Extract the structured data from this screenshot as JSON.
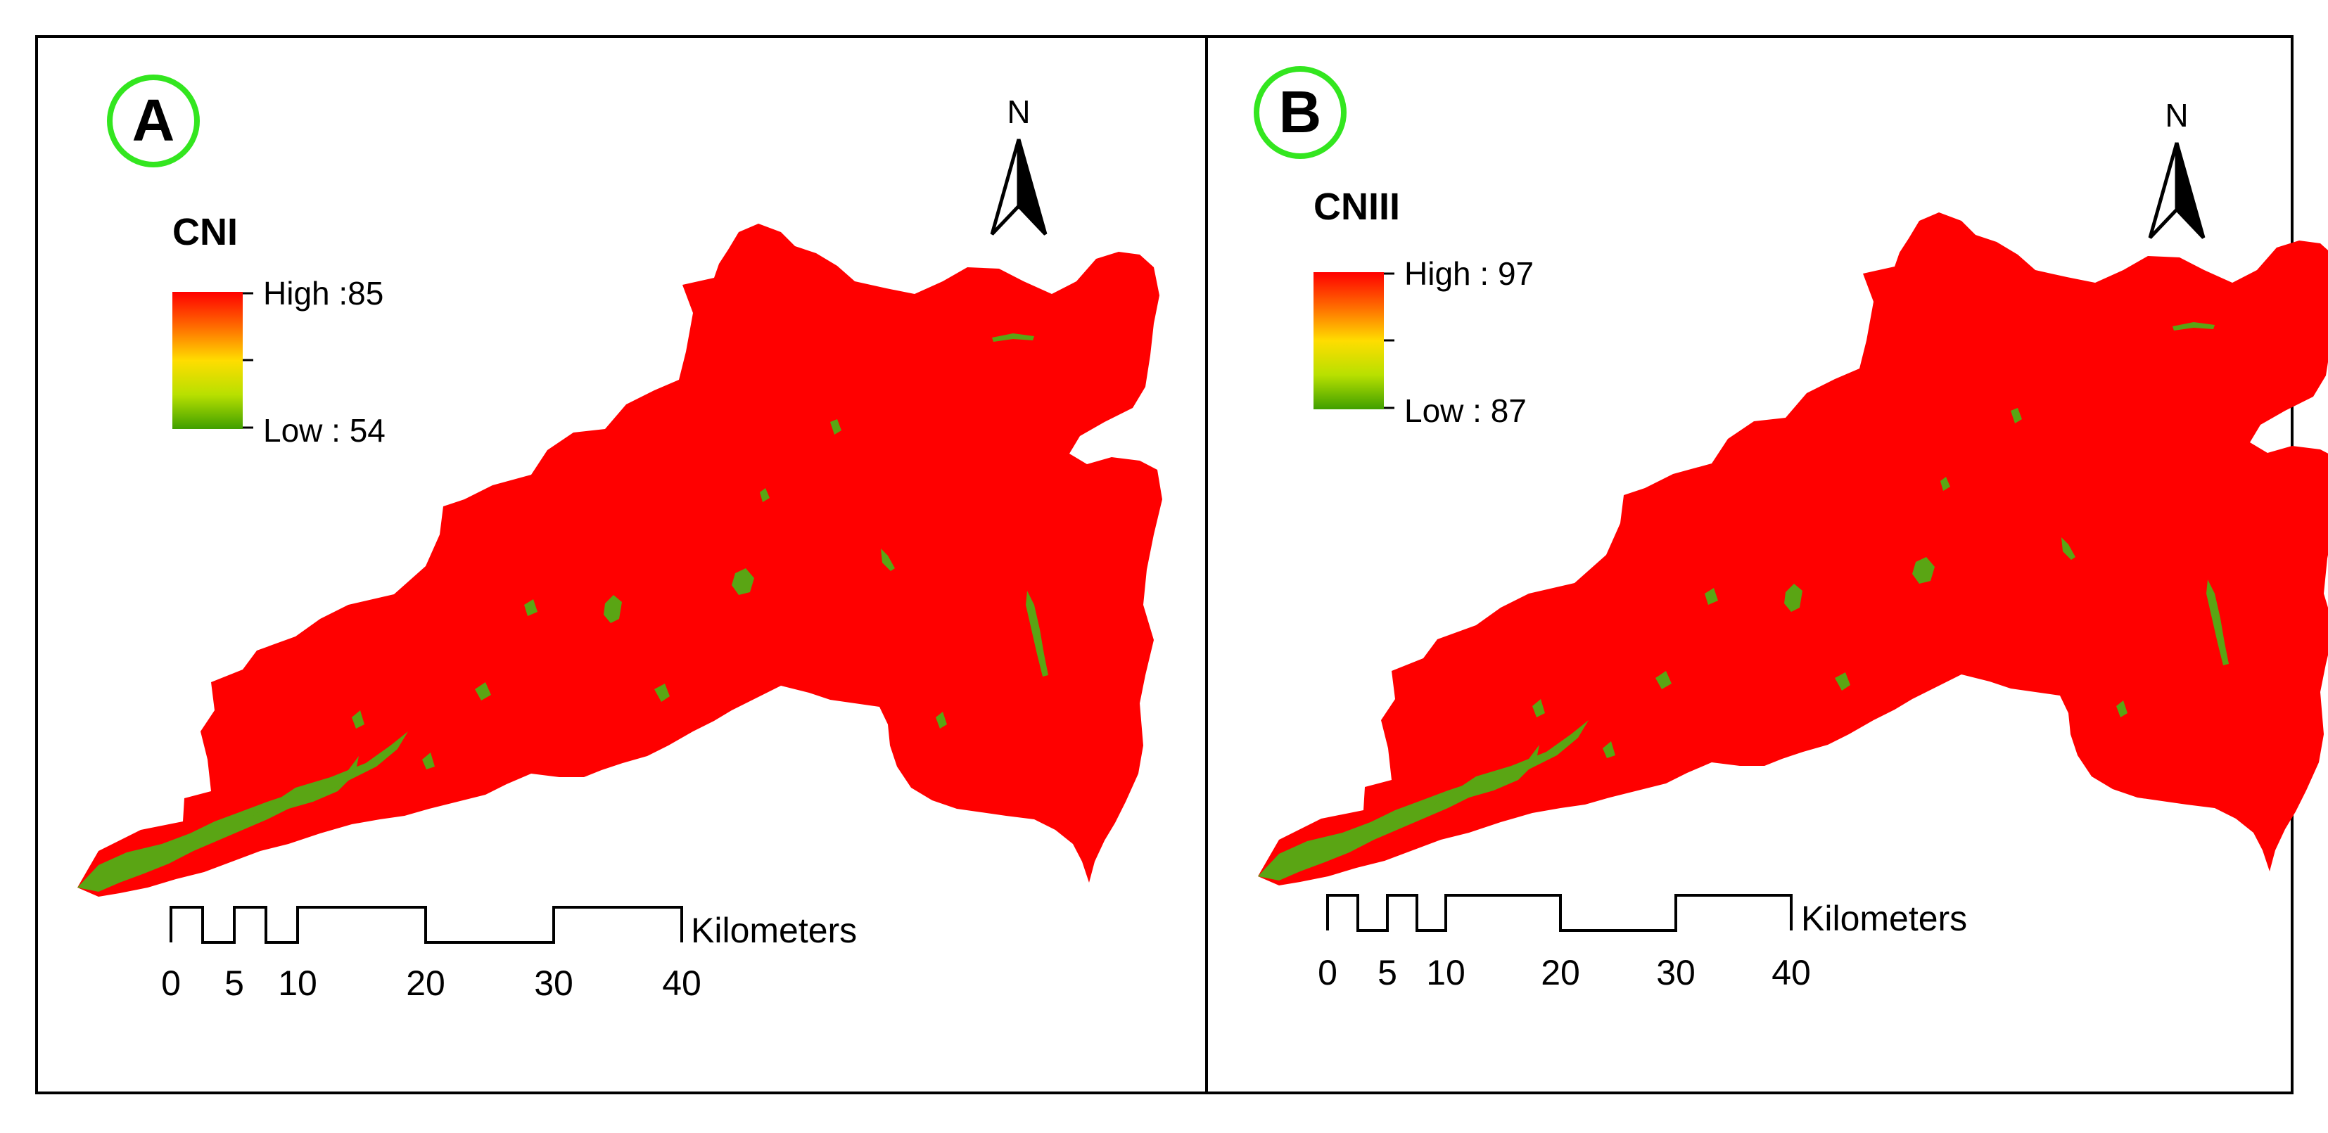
{
  "figure": {
    "panels": [
      {
        "id": "A",
        "badge": "A",
        "legend": {
          "title": "CNI",
          "high": "High :85",
          "low": "Low : 54",
          "colors": [
            "#ff0000",
            "#ff6a00",
            "#ffdd00",
            "#b8e000",
            "#3f9f00"
          ]
        },
        "north_label": "N",
        "scalebar": {
          "unit": "Kilometers",
          "ticks": [
            "0",
            "5",
            "10",
            "20",
            "30",
            "40"
          ]
        }
      },
      {
        "id": "B",
        "badge": "B",
        "legend": {
          "title": "CNIII",
          "high": "High : 97",
          "low": "Low : 87",
          "colors": [
            "#ff0000",
            "#ff6a00",
            "#ffdd00",
            "#b8e000",
            "#3f9f00"
          ]
        },
        "north_label": "N",
        "scalebar": {
          "unit": "Kilometers",
          "ticks": [
            "0",
            "5",
            "10",
            "20",
            "30",
            "40"
          ]
        }
      }
    ],
    "colors": {
      "watershed_fill": "#ff0000",
      "low_cn_fill": "#5aa514",
      "badge_ring": "#33e61f",
      "frame": "#000000"
    }
  }
}
